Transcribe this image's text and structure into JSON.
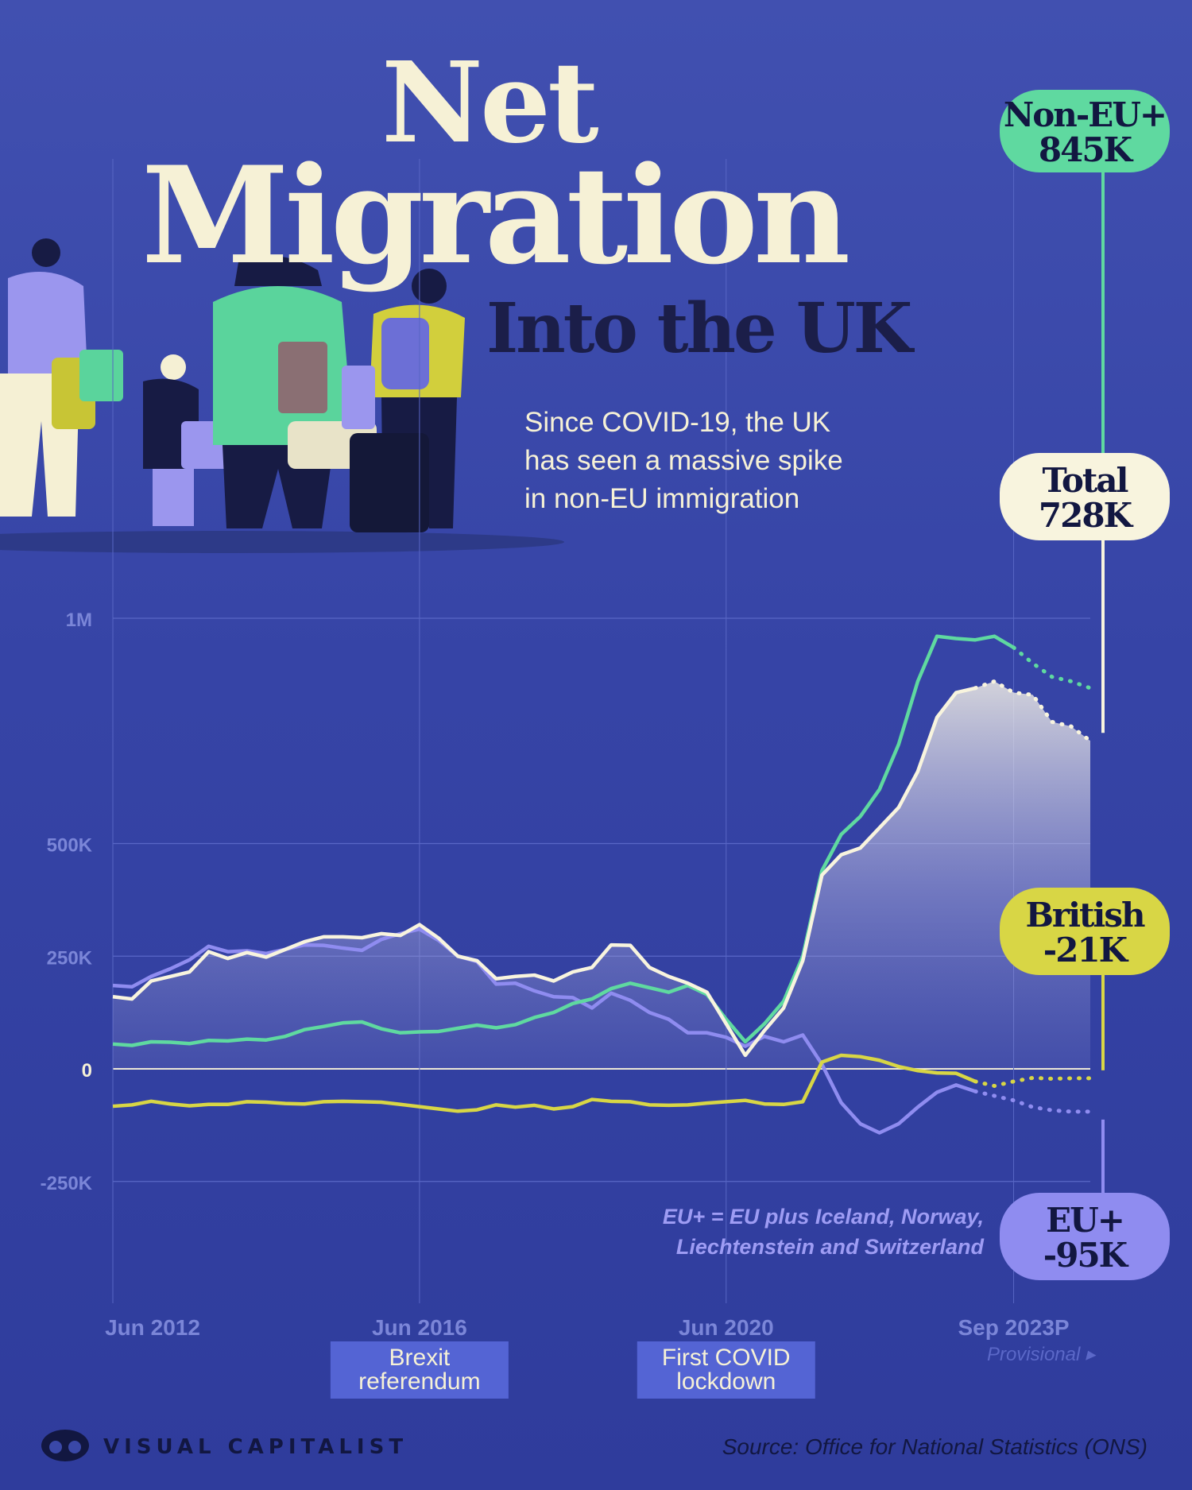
{
  "title": {
    "line1": "Net",
    "line2": "Migration",
    "line3": "Into the UK"
  },
  "subtitle": {
    "line1": "Since COVID-19, the UK",
    "line2": "has seen a massive spike",
    "line3": "in non-EU immigration"
  },
  "eu_note": {
    "line1": "EU+ = EU plus Iceland, Norway,",
    "line2": "Liechtenstein and Switzerland"
  },
  "source": "Source: Office for National Statistics (ONS)",
  "brand": "VISUAL CAPITALIST",
  "colors": {
    "background": "#3a48a8",
    "total": "#f8f4de",
    "non_eu": "#5fd9a0",
    "british": "#d8d645",
    "eu": "#8f8cf0",
    "annotation_box": "#5464d4",
    "axis_text": "#7b86d8"
  },
  "chart_data": {
    "type": "line",
    "x_start_label": "Jun 2012",
    "x_end_label": "Sep 2023P",
    "ylim": [
      -250000,
      1000000
    ],
    "yticks": [
      {
        "value": -250000,
        "label": "-250K"
      },
      {
        "value": 0,
        "label": "0"
      },
      {
        "value": 250000,
        "label": "250K"
      },
      {
        "value": 500000,
        "label": "500K"
      },
      {
        "value": 1000000,
        "label": "1M"
      }
    ],
    "xticks": [
      "Jun 2012",
      "Jun 2016",
      "Jun 2020",
      "Sep 2023P"
    ],
    "provisional_label": "Provisional ▸",
    "annotations": [
      {
        "x_label": "Jun 2016",
        "text_line1": "Brexit",
        "text_line2": "referendum"
      },
      {
        "x_label": "Jun 2020",
        "text_line1": "First COVID",
        "text_line2": "lockdown"
      }
    ],
    "series": [
      {
        "key": "total",
        "values": [
          160000,
          155000,
          195000,
          205000,
          215000,
          260000,
          245000,
          258000,
          248000,
          265000,
          282000,
          293000,
          293000,
          291000,
          300000,
          296000,
          320000,
          290000,
          250000,
          240000,
          200000,
          205000,
          208000,
          195000,
          215000,
          225000,
          275000,
          274000,
          225000,
          205000,
          190000,
          170000,
          100000,
          30000,
          85000,
          135000,
          240000,
          430000,
          475000,
          490000,
          535000,
          580000,
          660000,
          780000,
          835000,
          845000,
          860000,
          835000,
          830000,
          770000,
          760000,
          728000
        ],
        "projected_from": 45,
        "label_line1": "Total",
        "label_line2": "728K"
      },
      {
        "key": "non_eu",
        "values": [
          55000,
          52000,
          60000,
          59000,
          56000,
          63000,
          62000,
          66000,
          64000,
          72000,
          87000,
          94000,
          102000,
          104000,
          89000,
          80000,
          82000,
          83000,
          90000,
          97000,
          91000,
          98000,
          114000,
          125000,
          145000,
          155000,
          178000,
          190000,
          180000,
          170000,
          185000,
          165000,
          110000,
          60000,
          100000,
          150000,
          250000,
          440000,
          520000,
          560000,
          620000,
          720000,
          860000,
          960000,
          955000,
          952000,
          960000,
          935000,
          900000,
          870000,
          860000,
          845000
        ],
        "projected_from": 47,
        "label_line1": "Non-EU+",
        "label_line2": "845K"
      },
      {
        "key": "eu",
        "values": [
          185000,
          182000,
          205000,
          222000,
          242000,
          272000,
          260000,
          262000,
          256000,
          265000,
          275000,
          274000,
          268000,
          263000,
          287000,
          300000,
          310000,
          285000,
          250000,
          238000,
          188000,
          190000,
          173000,
          160000,
          158000,
          135000,
          168000,
          152000,
          125000,
          110000,
          80000,
          80000,
          70000,
          50000,
          72000,
          60000,
          75000,
          10000,
          -75000,
          -122000,
          -142000,
          -122000,
          -85000,
          -52000,
          -36000,
          -50000,
          -60000,
          -70000,
          -85000,
          -92000,
          -95000,
          -95000
        ],
        "projected_from": 45,
        "label_line1": "EU+",
        "label_line2": "-95K"
      },
      {
        "key": "british",
        "values": [
          -83000,
          -80000,
          -72000,
          -78000,
          -82000,
          -79000,
          -79000,
          -73000,
          -74000,
          -77000,
          -78000,
          -73000,
          -72000,
          -73000,
          -74000,
          -79000,
          -84000,
          -89000,
          -94000,
          -91000,
          -80000,
          -85000,
          -81000,
          -89000,
          -84000,
          -68000,
          -72000,
          -73000,
          -80000,
          -81000,
          -80000,
          -76000,
          -73000,
          -70000,
          -78000,
          -79000,
          -73000,
          15000,
          30000,
          27000,
          19000,
          5000,
          -4000,
          -9000,
          -10000,
          -28000,
          -38000,
          -28000,
          -20000,
          -22000,
          -21000,
          -21000
        ],
        "projected_from": 45,
        "label_line1": "British",
        "label_line2": "-21K"
      }
    ]
  }
}
